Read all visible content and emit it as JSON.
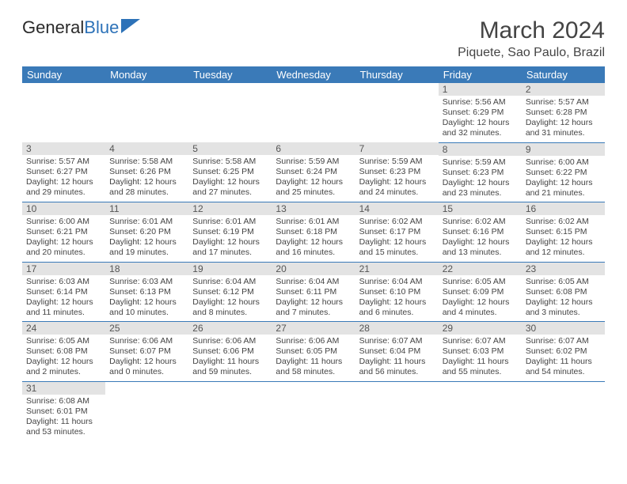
{
  "logo": {
    "text_dark": "General",
    "text_blue": "Blue"
  },
  "title": {
    "month": "March 2024",
    "location": "Piquete, Sao Paulo, Brazil"
  },
  "colors": {
    "header_bg": "#3a7ab8",
    "header_fg": "#ffffff",
    "daytop_bg": "#e3e3e3",
    "text": "#444444",
    "rule": "#3a7ab8"
  },
  "dow": [
    "Sunday",
    "Monday",
    "Tuesday",
    "Wednesday",
    "Thursday",
    "Friday",
    "Saturday"
  ],
  "weeks": [
    [
      null,
      null,
      null,
      null,
      null,
      {
        "n": "1",
        "sr": "Sunrise: 5:56 AM",
        "ss": "Sunset: 6:29 PM",
        "d1": "Daylight: 12 hours",
        "d2": "and 32 minutes."
      },
      {
        "n": "2",
        "sr": "Sunrise: 5:57 AM",
        "ss": "Sunset: 6:28 PM",
        "d1": "Daylight: 12 hours",
        "d2": "and 31 minutes."
      }
    ],
    [
      {
        "n": "3",
        "sr": "Sunrise: 5:57 AM",
        "ss": "Sunset: 6:27 PM",
        "d1": "Daylight: 12 hours",
        "d2": "and 29 minutes."
      },
      {
        "n": "4",
        "sr": "Sunrise: 5:58 AM",
        "ss": "Sunset: 6:26 PM",
        "d1": "Daylight: 12 hours",
        "d2": "and 28 minutes."
      },
      {
        "n": "5",
        "sr": "Sunrise: 5:58 AM",
        "ss": "Sunset: 6:25 PM",
        "d1": "Daylight: 12 hours",
        "d2": "and 27 minutes."
      },
      {
        "n": "6",
        "sr": "Sunrise: 5:59 AM",
        "ss": "Sunset: 6:24 PM",
        "d1": "Daylight: 12 hours",
        "d2": "and 25 minutes."
      },
      {
        "n": "7",
        "sr": "Sunrise: 5:59 AM",
        "ss": "Sunset: 6:23 PM",
        "d1": "Daylight: 12 hours",
        "d2": "and 24 minutes."
      },
      {
        "n": "8",
        "sr": "Sunrise: 5:59 AM",
        "ss": "Sunset: 6:23 PM",
        "d1": "Daylight: 12 hours",
        "d2": "and 23 minutes."
      },
      {
        "n": "9",
        "sr": "Sunrise: 6:00 AM",
        "ss": "Sunset: 6:22 PM",
        "d1": "Daylight: 12 hours",
        "d2": "and 21 minutes."
      }
    ],
    [
      {
        "n": "10",
        "sr": "Sunrise: 6:00 AM",
        "ss": "Sunset: 6:21 PM",
        "d1": "Daylight: 12 hours",
        "d2": "and 20 minutes."
      },
      {
        "n": "11",
        "sr": "Sunrise: 6:01 AM",
        "ss": "Sunset: 6:20 PM",
        "d1": "Daylight: 12 hours",
        "d2": "and 19 minutes."
      },
      {
        "n": "12",
        "sr": "Sunrise: 6:01 AM",
        "ss": "Sunset: 6:19 PM",
        "d1": "Daylight: 12 hours",
        "d2": "and 17 minutes."
      },
      {
        "n": "13",
        "sr": "Sunrise: 6:01 AM",
        "ss": "Sunset: 6:18 PM",
        "d1": "Daylight: 12 hours",
        "d2": "and 16 minutes."
      },
      {
        "n": "14",
        "sr": "Sunrise: 6:02 AM",
        "ss": "Sunset: 6:17 PM",
        "d1": "Daylight: 12 hours",
        "d2": "and 15 minutes."
      },
      {
        "n": "15",
        "sr": "Sunrise: 6:02 AM",
        "ss": "Sunset: 6:16 PM",
        "d1": "Daylight: 12 hours",
        "d2": "and 13 minutes."
      },
      {
        "n": "16",
        "sr": "Sunrise: 6:02 AM",
        "ss": "Sunset: 6:15 PM",
        "d1": "Daylight: 12 hours",
        "d2": "and 12 minutes."
      }
    ],
    [
      {
        "n": "17",
        "sr": "Sunrise: 6:03 AM",
        "ss": "Sunset: 6:14 PM",
        "d1": "Daylight: 12 hours",
        "d2": "and 11 minutes."
      },
      {
        "n": "18",
        "sr": "Sunrise: 6:03 AM",
        "ss": "Sunset: 6:13 PM",
        "d1": "Daylight: 12 hours",
        "d2": "and 10 minutes."
      },
      {
        "n": "19",
        "sr": "Sunrise: 6:04 AM",
        "ss": "Sunset: 6:12 PM",
        "d1": "Daylight: 12 hours",
        "d2": "and 8 minutes."
      },
      {
        "n": "20",
        "sr": "Sunrise: 6:04 AM",
        "ss": "Sunset: 6:11 PM",
        "d1": "Daylight: 12 hours",
        "d2": "and 7 minutes."
      },
      {
        "n": "21",
        "sr": "Sunrise: 6:04 AM",
        "ss": "Sunset: 6:10 PM",
        "d1": "Daylight: 12 hours",
        "d2": "and 6 minutes."
      },
      {
        "n": "22",
        "sr": "Sunrise: 6:05 AM",
        "ss": "Sunset: 6:09 PM",
        "d1": "Daylight: 12 hours",
        "d2": "and 4 minutes."
      },
      {
        "n": "23",
        "sr": "Sunrise: 6:05 AM",
        "ss": "Sunset: 6:08 PM",
        "d1": "Daylight: 12 hours",
        "d2": "and 3 minutes."
      }
    ],
    [
      {
        "n": "24",
        "sr": "Sunrise: 6:05 AM",
        "ss": "Sunset: 6:08 PM",
        "d1": "Daylight: 12 hours",
        "d2": "and 2 minutes."
      },
      {
        "n": "25",
        "sr": "Sunrise: 6:06 AM",
        "ss": "Sunset: 6:07 PM",
        "d1": "Daylight: 12 hours",
        "d2": "and 0 minutes."
      },
      {
        "n": "26",
        "sr": "Sunrise: 6:06 AM",
        "ss": "Sunset: 6:06 PM",
        "d1": "Daylight: 11 hours",
        "d2": "and 59 minutes."
      },
      {
        "n": "27",
        "sr": "Sunrise: 6:06 AM",
        "ss": "Sunset: 6:05 PM",
        "d1": "Daylight: 11 hours",
        "d2": "and 58 minutes."
      },
      {
        "n": "28",
        "sr": "Sunrise: 6:07 AM",
        "ss": "Sunset: 6:04 PM",
        "d1": "Daylight: 11 hours",
        "d2": "and 56 minutes."
      },
      {
        "n": "29",
        "sr": "Sunrise: 6:07 AM",
        "ss": "Sunset: 6:03 PM",
        "d1": "Daylight: 11 hours",
        "d2": "and 55 minutes."
      },
      {
        "n": "30",
        "sr": "Sunrise: 6:07 AM",
        "ss": "Sunset: 6:02 PM",
        "d1": "Daylight: 11 hours",
        "d2": "and 54 minutes."
      }
    ],
    [
      {
        "n": "31",
        "sr": "Sunrise: 6:08 AM",
        "ss": "Sunset: 6:01 PM",
        "d1": "Daylight: 11 hours",
        "d2": "and 53 minutes."
      },
      null,
      null,
      null,
      null,
      null,
      null
    ]
  ]
}
